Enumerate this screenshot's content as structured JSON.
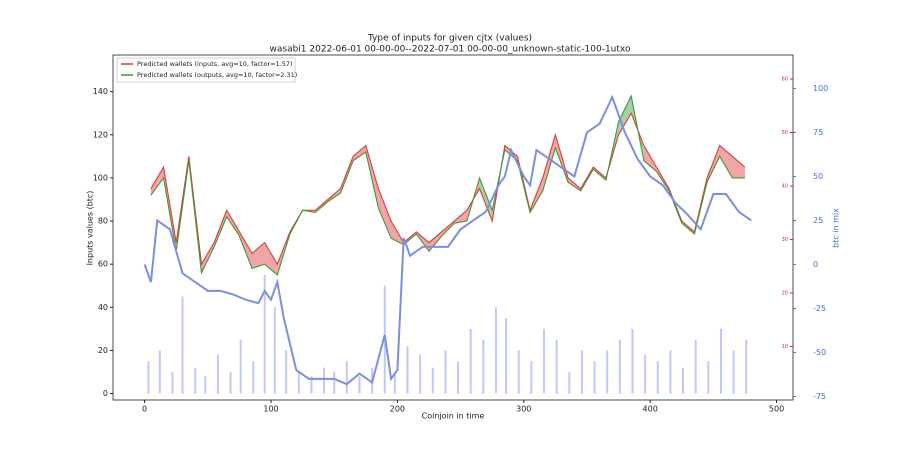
{
  "chart_data": {
    "type": "line",
    "title": "Type of inputs for given cjtx (values)",
    "subtitle": "wasabi1 2022-06-01 00-00-00--2022-07-01 00-00-00_unknown-static-100-1utxo",
    "x_label": "Coinjoin in time",
    "y_label": "Inputs values (btc)",
    "y2_label": "btc in mix",
    "xlim": [
      -25,
      513
    ],
    "xticks": [
      0,
      100,
      200,
      300,
      400,
      500
    ],
    "ylim": [
      -3,
      157
    ],
    "yticks": [
      0,
      20,
      40,
      60,
      80,
      100,
      120,
      140
    ],
    "y2lim": [
      -77,
      119
    ],
    "y2ticks": [
      -75,
      -50,
      -25,
      0,
      25,
      50,
      75,
      100
    ],
    "y3lim": [
      0,
      64.5
    ],
    "y3ticks": [
      10,
      20,
      30,
      40,
      50,
      60
    ],
    "legend": "upper left",
    "series": [
      {
        "name": "Predicted wallets (inputs, avg=10, factor=1.57)",
        "color": "#e03a3a",
        "x": [
          5,
          15,
          25,
          35,
          45,
          55,
          65,
          75,
          85,
          95,
          105,
          115,
          125,
          135,
          145,
          155,
          165,
          175,
          185,
          195,
          205,
          215,
          225,
          235,
          245,
          255,
          265,
          275,
          285,
          295,
          305,
          315,
          325,
          335,
          345,
          355,
          365,
          375,
          385,
          395,
          405,
          415,
          425,
          435,
          445,
          455,
          465,
          475
        ],
        "values": [
          95,
          105,
          70,
          110,
          60,
          70,
          85,
          75,
          65,
          70,
          60,
          75,
          85,
          85,
          90,
          95,
          110,
          115,
          95,
          80,
          70,
          75,
          70,
          75,
          80,
          85,
          95,
          80,
          115,
          110,
          85,
          100,
          120,
          100,
          95,
          105,
          100,
          120,
          130,
          115,
          105,
          95,
          80,
          75,
          100,
          115,
          110,
          105
        ]
      },
      {
        "name": "Predicted wallets (outputs, avg=10, factor=2.31)",
        "color": "#3a9a3a",
        "x": [
          5,
          15,
          25,
          35,
          45,
          55,
          65,
          75,
          85,
          95,
          105,
          115,
          125,
          135,
          145,
          155,
          165,
          175,
          185,
          195,
          205,
          215,
          225,
          235,
          245,
          255,
          265,
          275,
          285,
          295,
          305,
          315,
          325,
          335,
          345,
          355,
          365,
          375,
          385,
          395,
          405,
          415,
          425,
          435,
          445,
          455,
          465,
          475
        ],
        "values": [
          92,
          100,
          66,
          108,
          56,
          68,
          82,
          73,
          58,
          60,
          55,
          74,
          85,
          84,
          89,
          93,
          108,
          112,
          86,
          72,
          69,
          74,
          66,
          73,
          79,
          80,
          100,
          85,
          113,
          108,
          84,
          94,
          114,
          98,
          94,
          104,
          99,
          126,
          138,
          108,
          103,
          94,
          79,
          74,
          98,
          110,
          100,
          100
        ]
      },
      {
        "name": "btc in mix",
        "color": "#7b8fe0",
        "axis": "y2",
        "x": [
          0,
          5,
          10,
          20,
          30,
          40,
          50,
          60,
          70,
          80,
          90,
          95,
          100,
          105,
          110,
          120,
          130,
          140,
          150,
          160,
          170,
          180,
          190,
          195,
          200,
          205,
          210,
          220,
          230,
          240,
          250,
          260,
          270,
          280,
          285,
          290,
          300,
          305,
          310,
          320,
          330,
          340,
          350,
          360,
          370,
          380,
          390,
          400,
          410,
          420,
          430,
          440,
          450,
          460,
          470,
          480
        ],
        "values": [
          0,
          -10,
          25,
          20,
          -5,
          -10,
          -15,
          -15,
          -17,
          -20,
          -22,
          -15,
          -20,
          -10,
          -30,
          -60,
          -65,
          -65,
          -65,
          -68,
          -62,
          -67,
          -40,
          -65,
          -60,
          15,
          5,
          10,
          10,
          10,
          20,
          25,
          30,
          45,
          50,
          65,
          50,
          45,
          65,
          60,
          55,
          50,
          75,
          80,
          95,
          75,
          60,
          50,
          45,
          35,
          28,
          20,
          40,
          40,
          30,
          25
        ]
      },
      {
        "name": "inputs",
        "color": "#a4b0f2",
        "kind": "bar",
        "x": [
          3,
          12,
          22,
          30,
          40,
          48,
          58,
          68,
          76,
          86,
          95,
          103,
          112,
          122,
          132,
          142,
          150,
          160,
          170,
          180,
          190,
          198,
          208,
          218,
          228,
          238,
          248,
          258,
          268,
          278,
          286,
          296,
          306,
          316,
          326,
          336,
          346,
          356,
          366,
          376,
          386,
          396,
          406,
          416,
          426,
          436,
          446,
          456,
          466,
          476
        ],
        "values": [
          15,
          20,
          10,
          45,
          12,
          8,
          18,
          10,
          25,
          15,
          55,
          40,
          20,
          10,
          8,
          12,
          10,
          15,
          8,
          12,
          50,
          10,
          22,
          18,
          12,
          20,
          15,
          30,
          25,
          40,
          35,
          20,
          15,
          30,
          25,
          10,
          20,
          15,
          20,
          25,
          30,
          18,
          15,
          20,
          12,
          25,
          15,
          30,
          20,
          25
        ]
      }
    ]
  }
}
